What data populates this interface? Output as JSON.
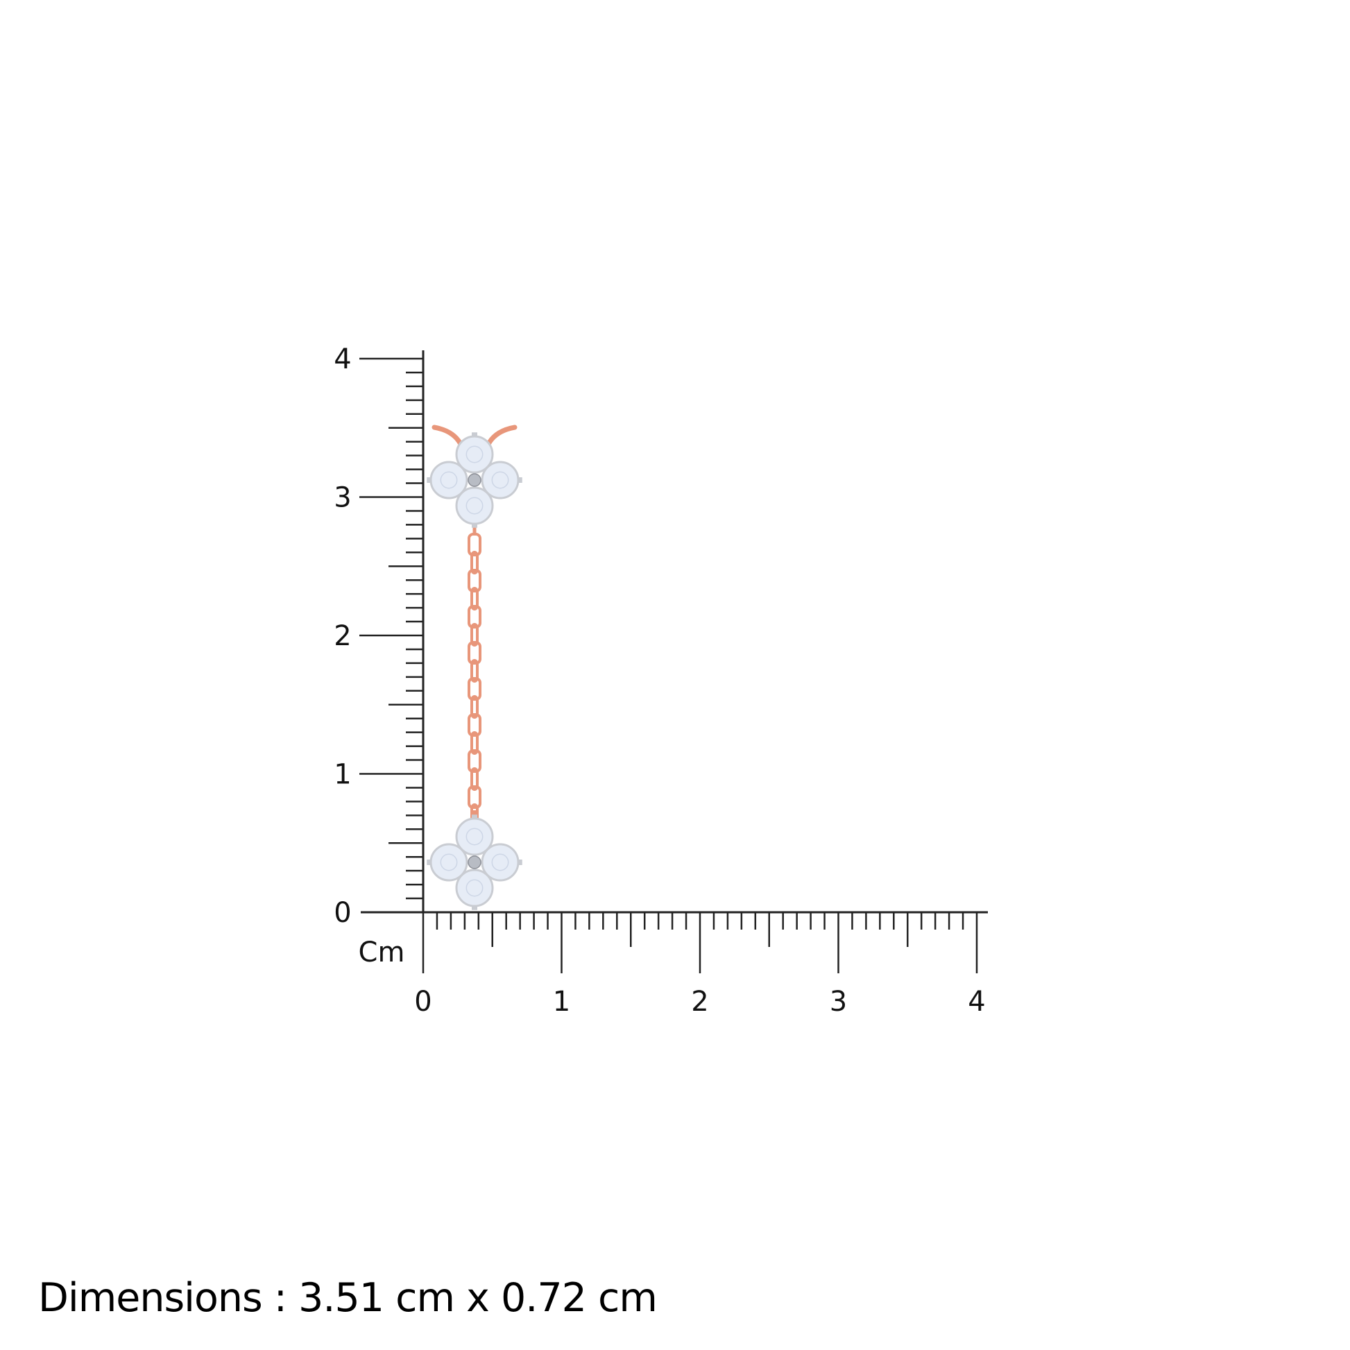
{
  "ruler": {
    "unit_label": "Cm",
    "y_ticks": [
      "0",
      "1",
      "2",
      "3",
      "4"
    ],
    "x_ticks": [
      "0",
      "1",
      "2",
      "3",
      "4"
    ],
    "subdivisions_per_cm": 10
  },
  "product": {
    "type": "chain earring with two four-stone flower clusters",
    "metal_color": "#e8967a",
    "setting_color": "#c9ccd2",
    "stone_color": "#e6ecf6"
  },
  "caption": {
    "text": "Dimensions : 3.51 cm x 0.72 cm"
  }
}
